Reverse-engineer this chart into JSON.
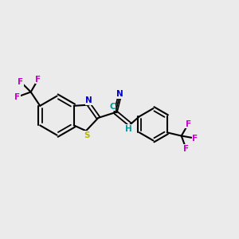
{
  "bg_color": "#ebebeb",
  "bond_color": "#000000",
  "S_color": "#b8b800",
  "N_color": "#0000cc",
  "F_color": "#cc00cc",
  "H_color": "#009999",
  "C_label_color": "#009999",
  "figsize": [
    3.0,
    3.0
  ],
  "dpi": 100,
  "xlim": [
    0,
    12
  ],
  "ylim": [
    0,
    10
  ]
}
